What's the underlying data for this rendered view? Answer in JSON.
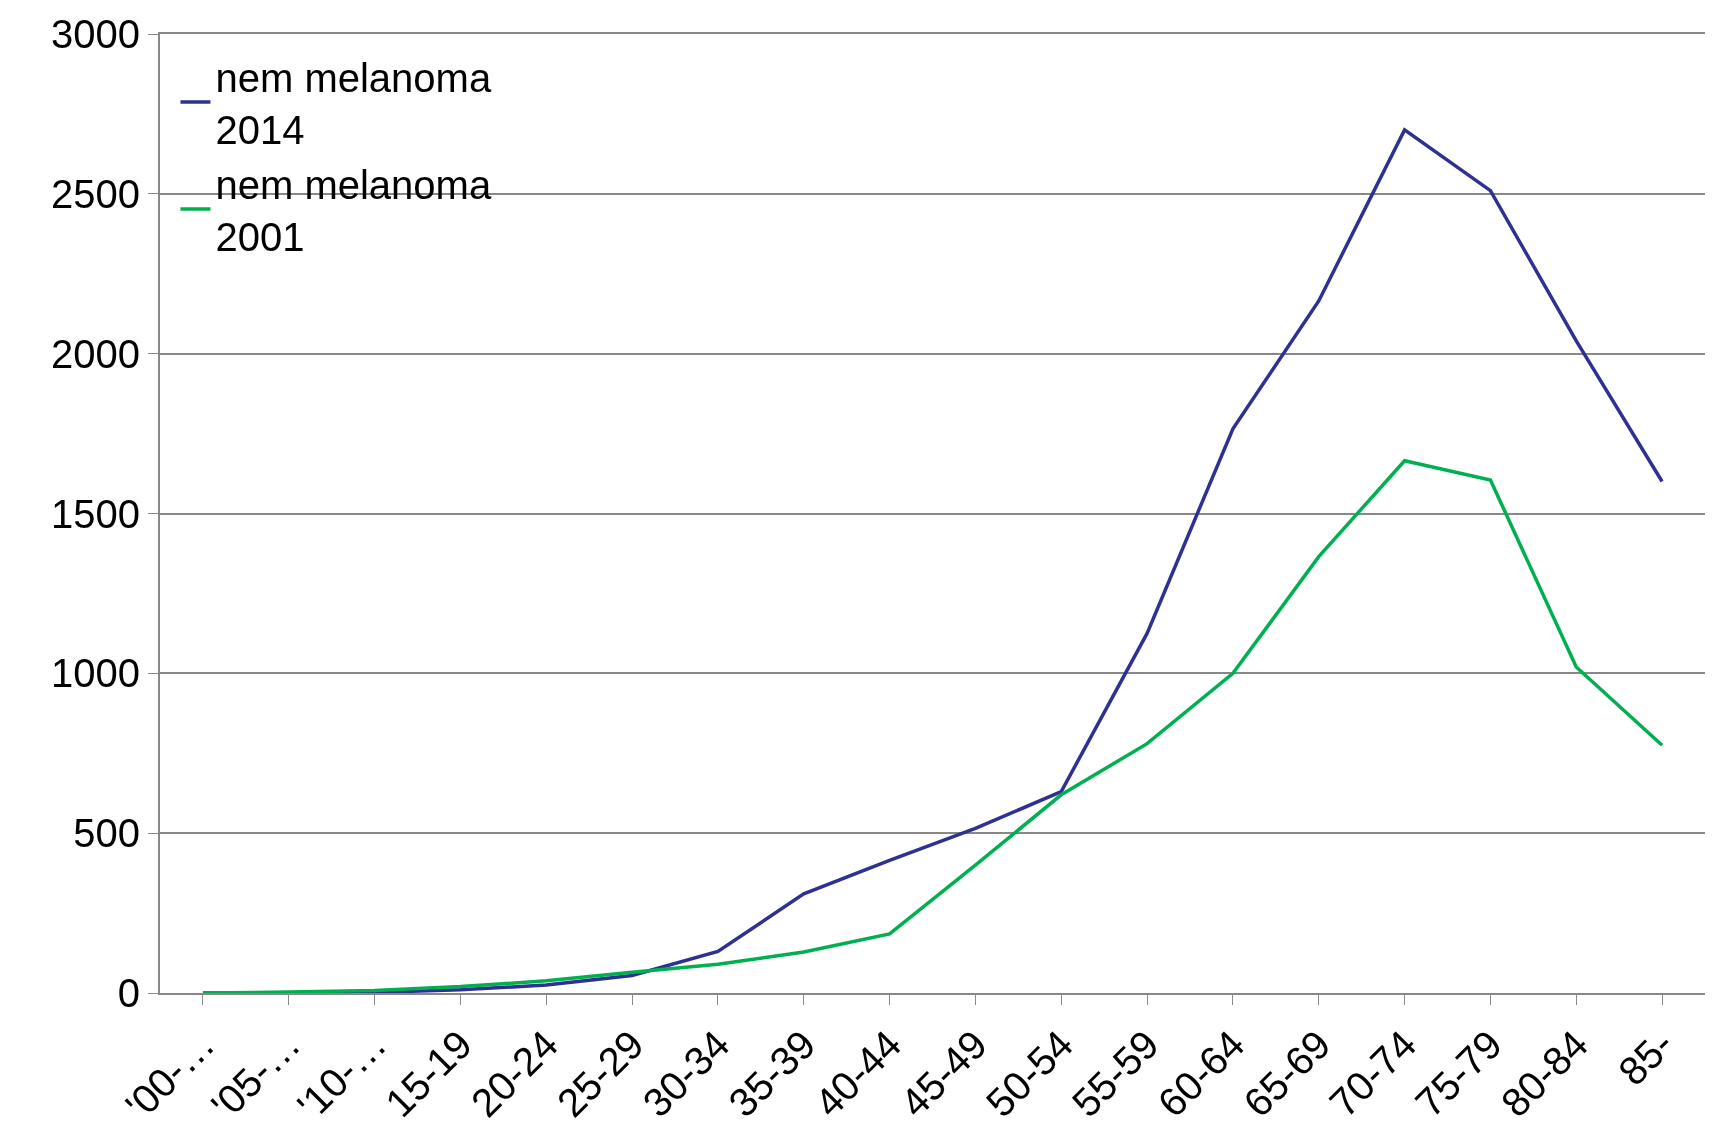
{
  "chart_data": {
    "type": "line",
    "categories": [
      "'00-…",
      "'05-…",
      "'10-…",
      "15-19",
      "20-24",
      "25-29",
      "30-34",
      "35-39",
      "40-44",
      "45-49",
      "50-54",
      "55-59",
      "60-64",
      "65-69",
      "70-74",
      "75-79",
      "80-84",
      "85-"
    ],
    "series": [
      {
        "name": "nem melanoma\n2014",
        "color": "#2e3192",
        "values": [
          0,
          0,
          2,
          10,
          25,
          55,
          130,
          310,
          415,
          515,
          630,
          1125,
          1765,
          2165,
          2700,
          2510,
          2040,
          1600
        ]
      },
      {
        "name": "nem melanoma\n2001",
        "color": "#00b050",
        "values": [
          0,
          3,
          8,
          20,
          38,
          65,
          90,
          128,
          185,
          400,
          620,
          780,
          1000,
          1365,
          1665,
          1605,
          1020,
          775
        ]
      }
    ],
    "ylim": [
      0,
      3000
    ],
    "yticks": [
      0,
      500,
      1000,
      1500,
      2000,
      2500,
      3000
    ],
    "grid": "y",
    "legend": "top left",
    "marker": "none",
    "line_style": "solid"
  }
}
